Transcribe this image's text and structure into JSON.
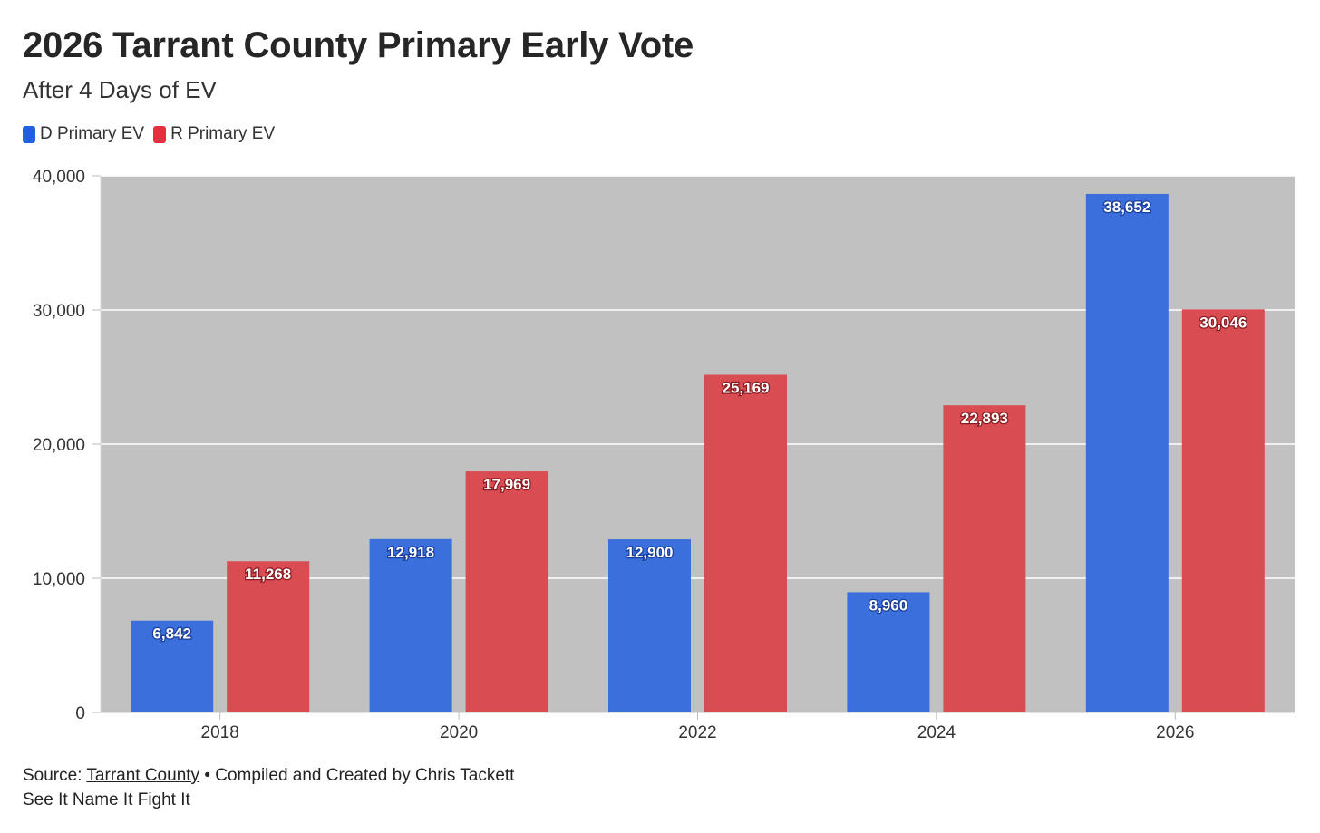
{
  "title": "2026 Tarrant County Primary Early Vote",
  "subtitle": "After 4 Days of EV",
  "footer": {
    "source_prefix": "Source: ",
    "source_link": "Tarrant County",
    "source_suffix": " • Compiled and Created by Chris Tackett",
    "line2": "See It Name It Fight It"
  },
  "chart_data": {
    "type": "bar",
    "categories": [
      "2018",
      "2020",
      "2022",
      "2024",
      "2026"
    ],
    "series": [
      {
        "name": "D Primary EV",
        "color": "#3a6fdc",
        "values": [
          6842,
          12918,
          12900,
          8960,
          38652
        ],
        "labels": [
          "6,842",
          "12,918",
          "12,900",
          "8,960",
          "38,652"
        ]
      },
      {
        "name": "R Primary EV",
        "color": "#d94d52",
        "values": [
          11268,
          17969,
          25169,
          22893,
          30046
        ],
        "labels": [
          "11,268",
          "17,969",
          "25,169",
          "22,893",
          "30,046"
        ]
      }
    ],
    "ylim": [
      0,
      40000
    ],
    "yticks": [
      0,
      10000,
      20000,
      30000,
      40000
    ],
    "ytick_labels": [
      "0",
      "10,000",
      "20,000",
      "30,000",
      "40,000"
    ],
    "grid": true,
    "legend": "top-left",
    "plot_background": "#c1c1c1"
  }
}
